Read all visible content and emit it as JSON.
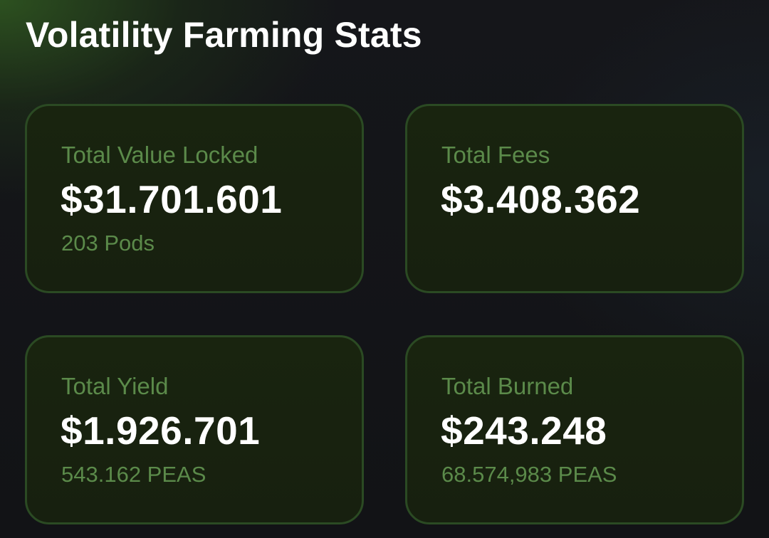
{
  "header": {
    "title": "Volatility Farming Stats"
  },
  "colors": {
    "background": "#121316",
    "accent_glow": "#2e5420",
    "card_background": "#18230f",
    "card_border": "#2b4a23",
    "label_text": "#5b8a4a",
    "value_text": "#ffffff"
  },
  "stats": {
    "tvl": {
      "label": "Total Value Locked",
      "value": "$31.701.601",
      "sub": "203 Pods"
    },
    "fees": {
      "label": "Total Fees",
      "value": "$3.408.362"
    },
    "yield": {
      "label": "Total Yield",
      "value": "$1.926.701",
      "sub": "543.162 PEAS"
    },
    "burned": {
      "label": "Total Burned",
      "value": "$243.248",
      "sub": "68.574,983 PEAS"
    }
  }
}
